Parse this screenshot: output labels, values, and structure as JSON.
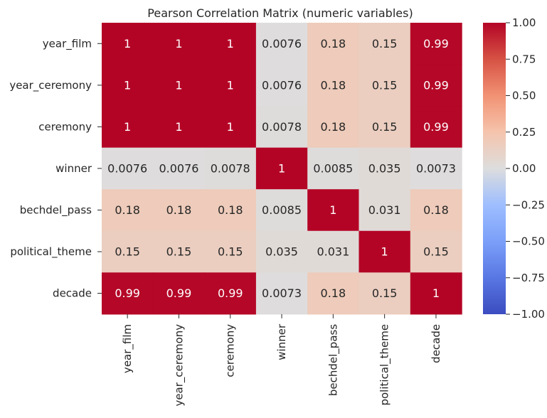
{
  "chart_data": {
    "type": "heatmap",
    "title": "Pearson Correlation Matrix (numeric variables)",
    "xlabel": "",
    "ylabel": "",
    "rows": [
      "year_film",
      "year_ceremony",
      "ceremony",
      "winner",
      "bechdel_pass",
      "political_theme",
      "decade"
    ],
    "cols": [
      "year_film",
      "year_ceremony",
      "ceremony",
      "winner",
      "bechdel_pass",
      "political_theme",
      "decade"
    ],
    "values": [
      [
        1,
        1,
        1,
        0.0076,
        0.18,
        0.15,
        0.99
      ],
      [
        1,
        1,
        1,
        0.0076,
        0.18,
        0.15,
        0.99
      ],
      [
        1,
        1,
        1,
        0.0078,
        0.18,
        0.15,
        0.99
      ],
      [
        0.0076,
        0.0076,
        0.0078,
        1,
        0.0085,
        0.035,
        0.0073
      ],
      [
        0.18,
        0.18,
        0.18,
        0.0085,
        1,
        0.031,
        0.18
      ],
      [
        0.15,
        0.15,
        0.15,
        0.035,
        0.031,
        1,
        0.15
      ],
      [
        0.99,
        0.99,
        0.99,
        0.0073,
        0.18,
        0.15,
        1
      ]
    ],
    "labels": [
      [
        "1",
        "1",
        "1",
        "0.0076",
        "0.18",
        "0.15",
        "0.99"
      ],
      [
        "1",
        "1",
        "1",
        "0.0076",
        "0.18",
        "0.15",
        "0.99"
      ],
      [
        "1",
        "1",
        "1",
        "0.0078",
        "0.18",
        "0.15",
        "0.99"
      ],
      [
        "0.0076",
        "0.0076",
        "0.0078",
        "1",
        "0.0085",
        "0.035",
        "0.0073"
      ],
      [
        "0.18",
        "0.18",
        "0.18",
        "0.0085",
        "1",
        "0.031",
        "0.18"
      ],
      [
        "0.15",
        "0.15",
        "0.15",
        "0.035",
        "0.031",
        "1",
        "0.15"
      ],
      [
        "0.99",
        "0.99",
        "0.99",
        "0.0073",
        "0.18",
        "0.15",
        "1"
      ]
    ],
    "colorbar": {
      "colormap": "coolwarm",
      "vmin": -1.0,
      "vmax": 1.0,
      "ticks": [
        1.0,
        0.75,
        0.5,
        0.25,
        0.0,
        -0.25,
        -0.5,
        -0.75,
        -1.0
      ],
      "tick_labels": [
        "1.00",
        "0.75",
        "0.50",
        "0.25",
        "0.00",
        "−0.25",
        "−0.50",
        "−0.75",
        "−1.00"
      ]
    }
  }
}
